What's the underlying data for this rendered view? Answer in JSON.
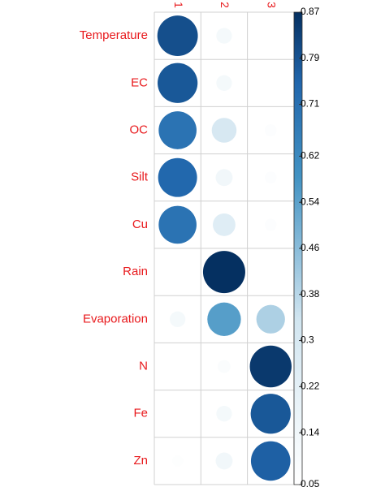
{
  "chart_data": {
    "type": "corrplot",
    "rows": [
      "Temperature",
      "EC",
      "OC",
      "Silt",
      "Cu",
      "Rain",
      "Evaporation",
      "N",
      "Fe",
      "Zn"
    ],
    "columns": [
      "1",
      "2",
      "3"
    ],
    "values": [
      [
        0.8,
        0.12,
        0.05
      ],
      [
        0.78,
        0.12,
        0.05
      ],
      [
        0.7,
        0.3,
        0.07
      ],
      [
        0.74,
        0.14,
        0.07
      ],
      [
        0.7,
        0.25,
        0.07
      ],
      [
        0.05,
        0.87,
        0.05
      ],
      [
        0.12,
        0.55,
        0.4
      ],
      [
        0.05,
        0.08,
        0.85
      ],
      [
        0.05,
        0.12,
        0.78
      ],
      [
        0.06,
        0.14,
        0.76
      ]
    ],
    "colorbar": {
      "lim": [
        0.05,
        0.87
      ],
      "ticks": [
        0.05,
        0.14,
        0.22,
        0.3,
        0.38,
        0.46,
        0.54,
        0.62,
        0.71,
        0.79,
        0.87
      ]
    }
  }
}
